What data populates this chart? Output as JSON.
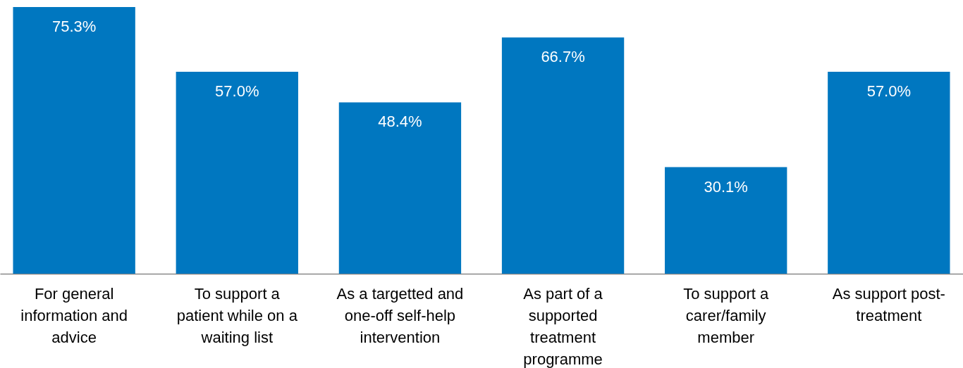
{
  "chart_data": {
    "type": "bar",
    "categories": [
      "For general information and advice",
      "To support a patient while on a waiting list",
      "As a targetted and one-off self-help intervention",
      "As part of a supported treatment programme",
      "To support a carer/family member",
      "As support post-treatment"
    ],
    "values": [
      75.3,
      57.0,
      48.4,
      66.7,
      30.1,
      57.0
    ],
    "value_labels": [
      "75.3%",
      "57.0%",
      "48.4%",
      "66.7%",
      "30.1%",
      "57.0%"
    ],
    "color": "#0077c0",
    "tick_labels": "x"
  }
}
